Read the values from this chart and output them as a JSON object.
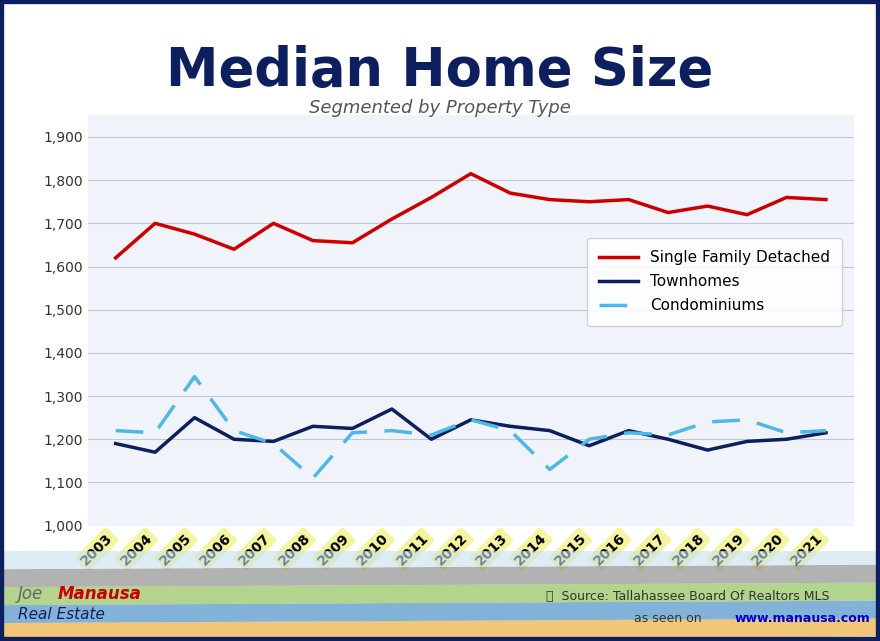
{
  "title": "Median Home Size",
  "subtitle": "Segmented by Property Type",
  "years": [
    2003,
    2004,
    2005,
    2006,
    2007,
    2008,
    2009,
    2010,
    2011,
    2012,
    2013,
    2014,
    2015,
    2016,
    2017,
    2018,
    2019,
    2020,
    2021
  ],
  "single_family": [
    1620,
    1700,
    1675,
    1640,
    1700,
    1660,
    1655,
    1710,
    1760,
    1815,
    1770,
    1755,
    1750,
    1755,
    1725,
    1740,
    1720,
    1760,
    1755
  ],
  "townhomes": [
    1190,
    1170,
    1250,
    1200,
    1195,
    1230,
    1225,
    1270,
    1200,
    1245,
    1230,
    1220,
    1185,
    1220,
    1200,
    1175,
    1195,
    1200,
    1215
  ],
  "condominiums": [
    1220,
    1215,
    1345,
    1220,
    1190,
    1110,
    1215,
    1220,
    1210,
    1245,
    1220,
    1130,
    1200,
    1215,
    1210,
    1240,
    1245,
    1215,
    1220
  ],
  "ylim": [
    1000,
    1950
  ],
  "yticks": [
    1000,
    1100,
    1200,
    1300,
    1400,
    1500,
    1600,
    1700,
    1800,
    1900
  ],
  "single_family_color": "#cc0000",
  "townhomes_color": "#0d1f5e",
  "condominiums_color": "#4db8e8",
  "background_color": "#ffffff",
  "border_color": "#0d1f5e",
  "title_color": "#0d1f5e",
  "subtitle_color": "#555555",
  "gridline_color": "#c0c8d8",
  "source_text": "Source: Tallahassee Board Of Realtors MLS",
  "url_text": "www.manausa.com",
  "footer_left": "Joe Manausa\nReal Estate",
  "legend_labels": [
    "Single Family Detached",
    "Townhomes",
    "Condominiums"
  ]
}
